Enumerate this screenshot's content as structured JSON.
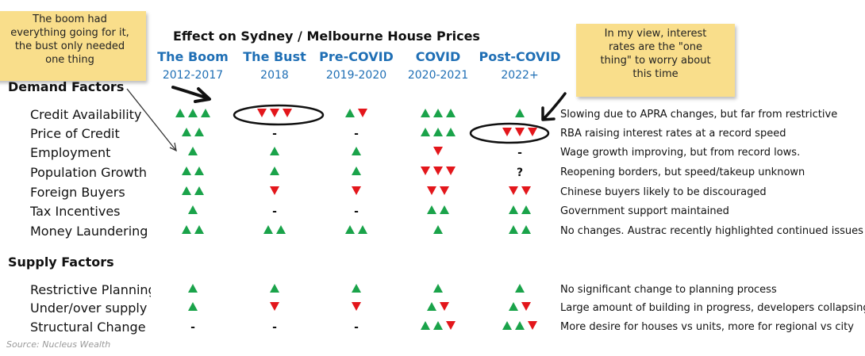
{
  "chart_data": {
    "type": "table",
    "title": "Effect on Sydney / Melbourne House Prices",
    "columns": [
      {
        "name": "The Boom",
        "period": "2012-2017"
      },
      {
        "name": "The Bust",
        "period": "2018"
      },
      {
        "name": "Pre-COVID",
        "period": "2019-2020"
      },
      {
        "name": "COVID",
        "period": "2020-2021"
      },
      {
        "name": "Post-COVID",
        "period": "2022+"
      }
    ],
    "sections": [
      {
        "name": "Demand Factors",
        "rows": [
          {
            "label": "Credit Availability",
            "cells": [
              "▲▲▲",
              "▼▼▼",
              "▲▼",
              "▲▲▲",
              "▲"
            ],
            "comment": "Slowing due to APRA changes, but far from restrictive"
          },
          {
            "label": "Price of Credit",
            "cells": [
              "▲▲",
              "-",
              "-",
              "▲▲▲",
              "▼▼▼"
            ],
            "comment": "RBA raising interest rates at a record speed"
          },
          {
            "label": "Employment",
            "cells": [
              "▲",
              "▲",
              "▲",
              "▼",
              "-"
            ],
            "comment": "Wage growth improving, but from record lows."
          },
          {
            "label": "Population Growth",
            "cells": [
              "▲▲",
              "▲",
              "▲",
              "▼▼▼",
              "?"
            ],
            "comment": "Reopening borders, but speed/takeup unknown"
          },
          {
            "label": "Foreign Buyers",
            "cells": [
              "▲▲",
              "▼",
              "▼",
              "▼▼",
              "▼▼"
            ],
            "comment": "Chinese buyers likely to be discouraged"
          },
          {
            "label": "Tax Incentives",
            "cells": [
              "▲",
              "-",
              "-",
              "▲▲",
              "▲▲"
            ],
            "comment": "Government support maintained"
          },
          {
            "label": "Money Laundering",
            "cells": [
              "▲▲",
              "▲▲",
              "▲▲",
              "▲",
              "▲▲"
            ],
            "comment": "No changes. Austrac recently highlighted continued issues"
          }
        ]
      },
      {
        "name": "Supply Factors",
        "rows": [
          {
            "label": "Restrictive Planning",
            "cells": [
              "▲",
              "▲",
              "▲",
              "▲",
              "▲"
            ],
            "comment": "No significant change to planning process"
          },
          {
            "label": "Under/over supply",
            "cells": [
              "▲",
              "▼",
              "▼",
              "▲▼",
              "▲▼"
            ],
            "comment": "Large amount of building in progress, developers collapsing"
          },
          {
            "label": "Structural Change",
            "cells": [
              "-",
              "-",
              "-",
              "▲▲▼",
              "▲▲▼"
            ],
            "comment": "More desire for houses vs units, more for regional vs city"
          }
        ]
      }
    ],
    "colors": {
      "up": "#1aa34a",
      "down": "#e3161b",
      "header": "#1f6fb5",
      "note": "#f9de8b"
    }
  },
  "notes": {
    "left": [
      "The boom had",
      "everything going for it,",
      "the bust only needed",
      "one thing"
    ],
    "right": [
      "In my view, interest",
      "rates are the \"one",
      "thing\" to worry about",
      "this time"
    ]
  },
  "source": "Source: Nucleus Wealth"
}
